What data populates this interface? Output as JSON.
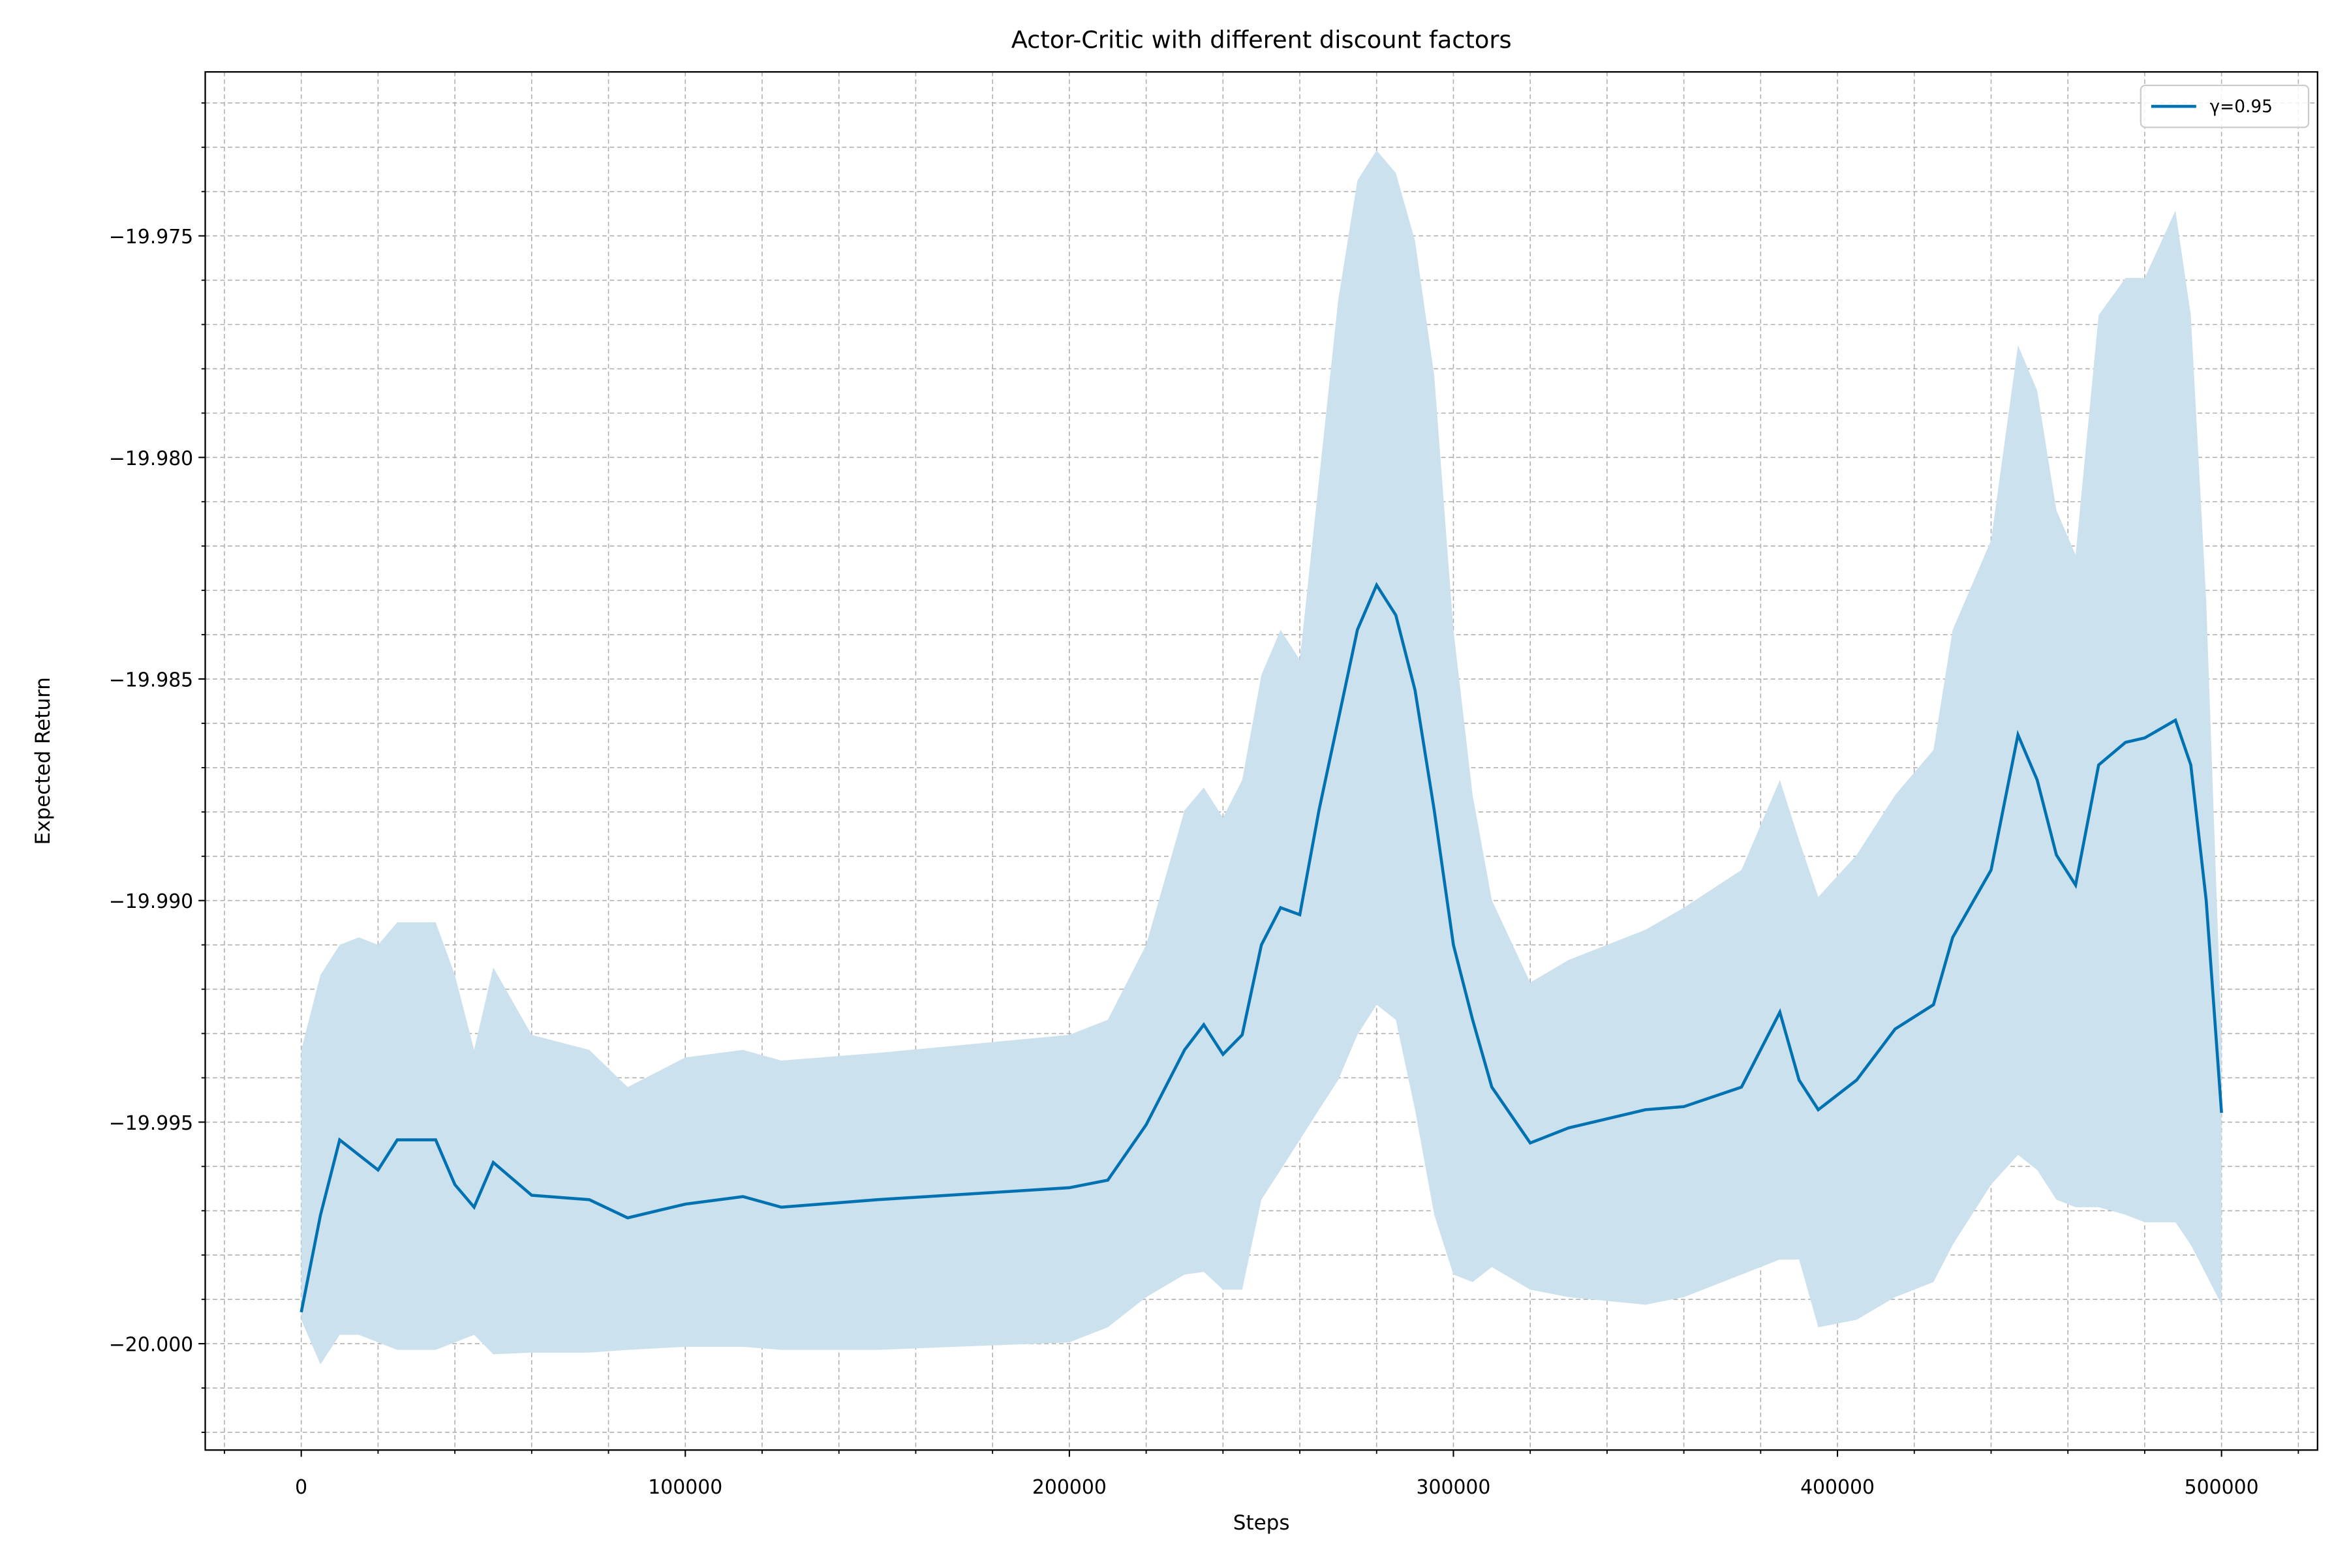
{
  "chart_data": {
    "type": "line_band",
    "title": "Actor-Critic with different discount factors",
    "xlabel": "Steps",
    "ylabel": "Expected Return",
    "x": [
      0,
      5000,
      10000,
      15000,
      20000,
      25000,
      35000,
      40000,
      45000,
      50000,
      60000,
      75000,
      85000,
      100000,
      115000,
      125000,
      150000,
      200000,
      210000,
      220000,
      230000,
      235000,
      240000,
      245000,
      250000,
      255000,
      260000,
      265000,
      270000,
      275000,
      280000,
      285000,
      290000,
      295000,
      300000,
      305000,
      310000,
      320000,
      330000,
      350000,
      360000,
      375000,
      385000,
      390000,
      395000,
      405000,
      415000,
      425000,
      430000,
      440000,
      447000,
      452000,
      457000,
      462000,
      468000,
      475000,
      480000,
      488000,
      492000,
      496000,
      500000
    ],
    "series": [
      {
        "name": "γ=0.95",
        "color": "#0072b2",
        "band_color": "#cce1ee",
        "values": [
          -19.99929,
          -19.9971,
          -19.9954,
          -19.99574,
          -19.99608,
          -19.9954,
          -19.9954,
          -19.99641,
          -19.99692,
          -19.99591,
          -19.99665,
          -19.99675,
          -19.99716,
          -19.99685,
          -19.99668,
          -19.99692,
          -19.99675,
          -19.99648,
          -19.99631,
          -19.99506,
          -19.99337,
          -19.9928,
          -19.99347,
          -19.99303,
          -19.991,
          -19.99016,
          -19.99032,
          -19.98796,
          -19.98593,
          -19.98389,
          -19.98288,
          -19.98356,
          -19.98525,
          -19.98796,
          -19.991,
          -19.99269,
          -19.99421,
          -19.99547,
          -19.99513,
          -19.99472,
          -19.99465,
          -19.99421,
          -19.99252,
          -19.99405,
          -19.99472,
          -19.99405,
          -19.9929,
          -19.99235,
          -19.99083,
          -19.98931,
          -19.98626,
          -19.98728,
          -19.98897,
          -19.98965,
          -19.98694,
          -19.98643,
          -19.98633,
          -19.98593,
          -19.98694,
          -19.98999,
          -19.99479
        ],
        "upper": [
          -19.99337,
          -19.99168,
          -19.991,
          -19.99083,
          -19.991,
          -19.99049,
          -19.99049,
          -19.99168,
          -19.99337,
          -19.99151,
          -19.99303,
          -19.99337,
          -19.99421,
          -19.99354,
          -19.99337,
          -19.99361,
          -19.99344,
          -19.99303,
          -19.99269,
          -19.991,
          -19.98796,
          -19.98745,
          -19.98813,
          -19.98728,
          -19.98491,
          -19.98389,
          -19.98457,
          -19.98051,
          -19.97645,
          -19.97375,
          -19.97307,
          -19.97358,
          -19.97511,
          -19.97815,
          -19.98389,
          -19.98762,
          -19.98999,
          -19.99185,
          -19.99134,
          -19.99066,
          -19.99016,
          -19.98931,
          -19.98728,
          -19.98864,
          -19.98992,
          -19.98897,
          -19.98762,
          -19.9866,
          -19.98389,
          -19.98187,
          -19.97747,
          -19.97849,
          -19.98119,
          -19.9822,
          -19.97679,
          -19.97595,
          -19.97595,
          -19.97443,
          -19.97679,
          -19.98322,
          -19.99303
        ],
        "lower": [
          -19.99946,
          -20.00047,
          -19.9998,
          -19.9998,
          -19.99997,
          -20.00014,
          -20.00014,
          -19.99997,
          -19.9998,
          -20.00024,
          -20.0002,
          -20.0002,
          -20.00014,
          -20.00007,
          -20.00007,
          -20.00014,
          -20.00014,
          -19.99997,
          -19.99963,
          -19.99895,
          -19.99844,
          -19.99838,
          -19.99878,
          -19.99878,
          -19.99675,
          -19.99608,
          -19.9954,
          -19.99472,
          -19.99405,
          -19.99303,
          -19.99235,
          -19.99269,
          -19.99472,
          -19.99709,
          -19.99844,
          -19.99861,
          -19.99827,
          -19.99878,
          -19.99895,
          -19.99912,
          -19.99895,
          -19.99844,
          -19.9981,
          -19.9981,
          -19.99963,
          -19.99946,
          -19.99895,
          -19.99861,
          -19.99777,
          -19.99641,
          -19.99574,
          -19.99608,
          -19.99675,
          -19.99692,
          -19.99692,
          -19.99709,
          -19.99726,
          -19.99726,
          -19.99777,
          -19.99844,
          -19.99912
        ]
      }
    ],
    "xlim": [
      -25000,
      525000
    ],
    "ylim": [
      -20.0024,
      -19.9713
    ],
    "xticks": [
      0,
      100000,
      200000,
      300000,
      400000,
      500000
    ],
    "yticks": [
      {
        "value": -20.0,
        "label": "−20.000"
      },
      {
        "value": -19.995,
        "label": "−19.995"
      },
      {
        "value": -19.99,
        "label": "−19.990"
      },
      {
        "value": -19.985,
        "label": "−19.985"
      },
      {
        "value": -19.98,
        "label": "−19.980"
      },
      {
        "value": -19.975,
        "label": "−19.975"
      }
    ],
    "xminorticks": [
      -20000,
      20000,
      40000,
      60000,
      80000,
      120000,
      140000,
      160000,
      180000,
      220000,
      240000,
      260000,
      280000,
      320000,
      340000,
      360000,
      380000,
      420000,
      440000,
      460000,
      480000,
      520000
    ],
    "yminorticks": [
      -20.002,
      -20.001,
      -19.999,
      -19.998,
      -19.997,
      -19.996,
      -19.994,
      -19.993,
      -19.992,
      -19.991,
      -19.989,
      -19.988,
      -19.987,
      -19.986,
      -19.984,
      -19.983,
      -19.982,
      -19.981,
      -19.979,
      -19.978,
      -19.977,
      -19.976,
      -19.974,
      -19.973,
      -19.972
    ],
    "grid": true,
    "legend": "upper right"
  }
}
